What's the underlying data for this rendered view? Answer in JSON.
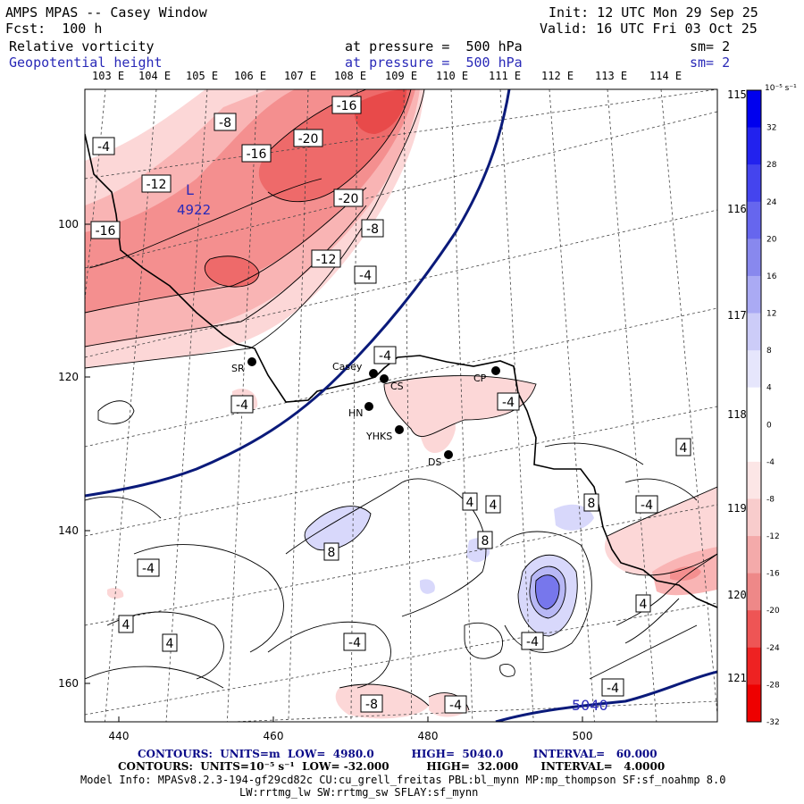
{
  "header": {
    "title": "AMPS MPAS -- Casey Window",
    "forecast": "Fcst:  100 h",
    "init": "Init: 12 UTC Mon 29 Sep 25",
    "valid": "Valid: 16 UTC Fri 03 Oct 25",
    "field1_name": "Relative vorticity",
    "field1_level": "at pressure =  500 hPa",
    "field1_sm": "sm= 2",
    "field2_name": "Geopotential height",
    "field2_level": "at pressure =  500 hPa",
    "field2_sm": "sm= 2"
  },
  "top_lon_labels": [
    "103 E",
    "104 E",
    "105 E",
    "106 E",
    "107 E",
    "108 E",
    "109 E",
    "110 E",
    "111 E",
    "112 E",
    "113 E",
    "114 E"
  ],
  "right_lon_labels": [
    "115 E",
    "116 E",
    "117 E",
    "118 E",
    "119 E",
    "120 E",
    "121 E"
  ],
  "x_axis_labels": [
    "440",
    "460",
    "480",
    "500"
  ],
  "y_axis_labels": [
    "100",
    "120",
    "140",
    "160"
  ],
  "colorbar": {
    "unit": "10⁻⁵ s⁻¹",
    "labels": [
      "32",
      "28",
      "24",
      "20",
      "16",
      "12",
      "8",
      "4",
      "0",
      "-4",
      "-8",
      "-12",
      "-16",
      "-20",
      "-24",
      "-28",
      "-32"
    ],
    "top_color": "#0000ee",
    "bottom_color": "#ee0000"
  },
  "stations": [
    {
      "name": "SR"
    },
    {
      "name": "Casey"
    },
    {
      "name": "CS"
    },
    {
      "name": "HN"
    },
    {
      "name": "YHKS"
    },
    {
      "name": "DS"
    },
    {
      "name": "CP"
    }
  ],
  "low_center": {
    "symbol": "L",
    "value": "4922"
  },
  "height_label": "5040",
  "contour_labels": [
    "-16",
    "-8",
    "-4",
    "-20",
    "-16",
    "-12",
    "-20",
    "-16",
    "-8",
    "-12",
    "-4",
    "-4",
    "-4",
    "-4",
    "4",
    "4",
    "4",
    "8",
    "-4",
    "8",
    "8",
    "-4",
    "4",
    "4",
    "4",
    "-4",
    "-4",
    "-8",
    "-4",
    "-4"
  ],
  "footer": {
    "line1": "CONTOURS:  UNITS=m  LOW=  4980.0          HIGH=  5040.0        INTERVAL=   60.000",
    "line2": "CONTOURS:  UNITS=10⁻⁵ s⁻¹  LOW= -32.000          HIGH=  32.000      INTERVAL=   4.0000",
    "line3": "Model Info: MPASv8.2.3-194-gf29cd82c CU:cu_grell_freitas PBL:bl_mynn MP:mp_thompson SF:sf_noahmp 8.0",
    "line4": "LW:rrtmg_lw SW:rrtmg_sw SFLAY:sf_mynn"
  }
}
